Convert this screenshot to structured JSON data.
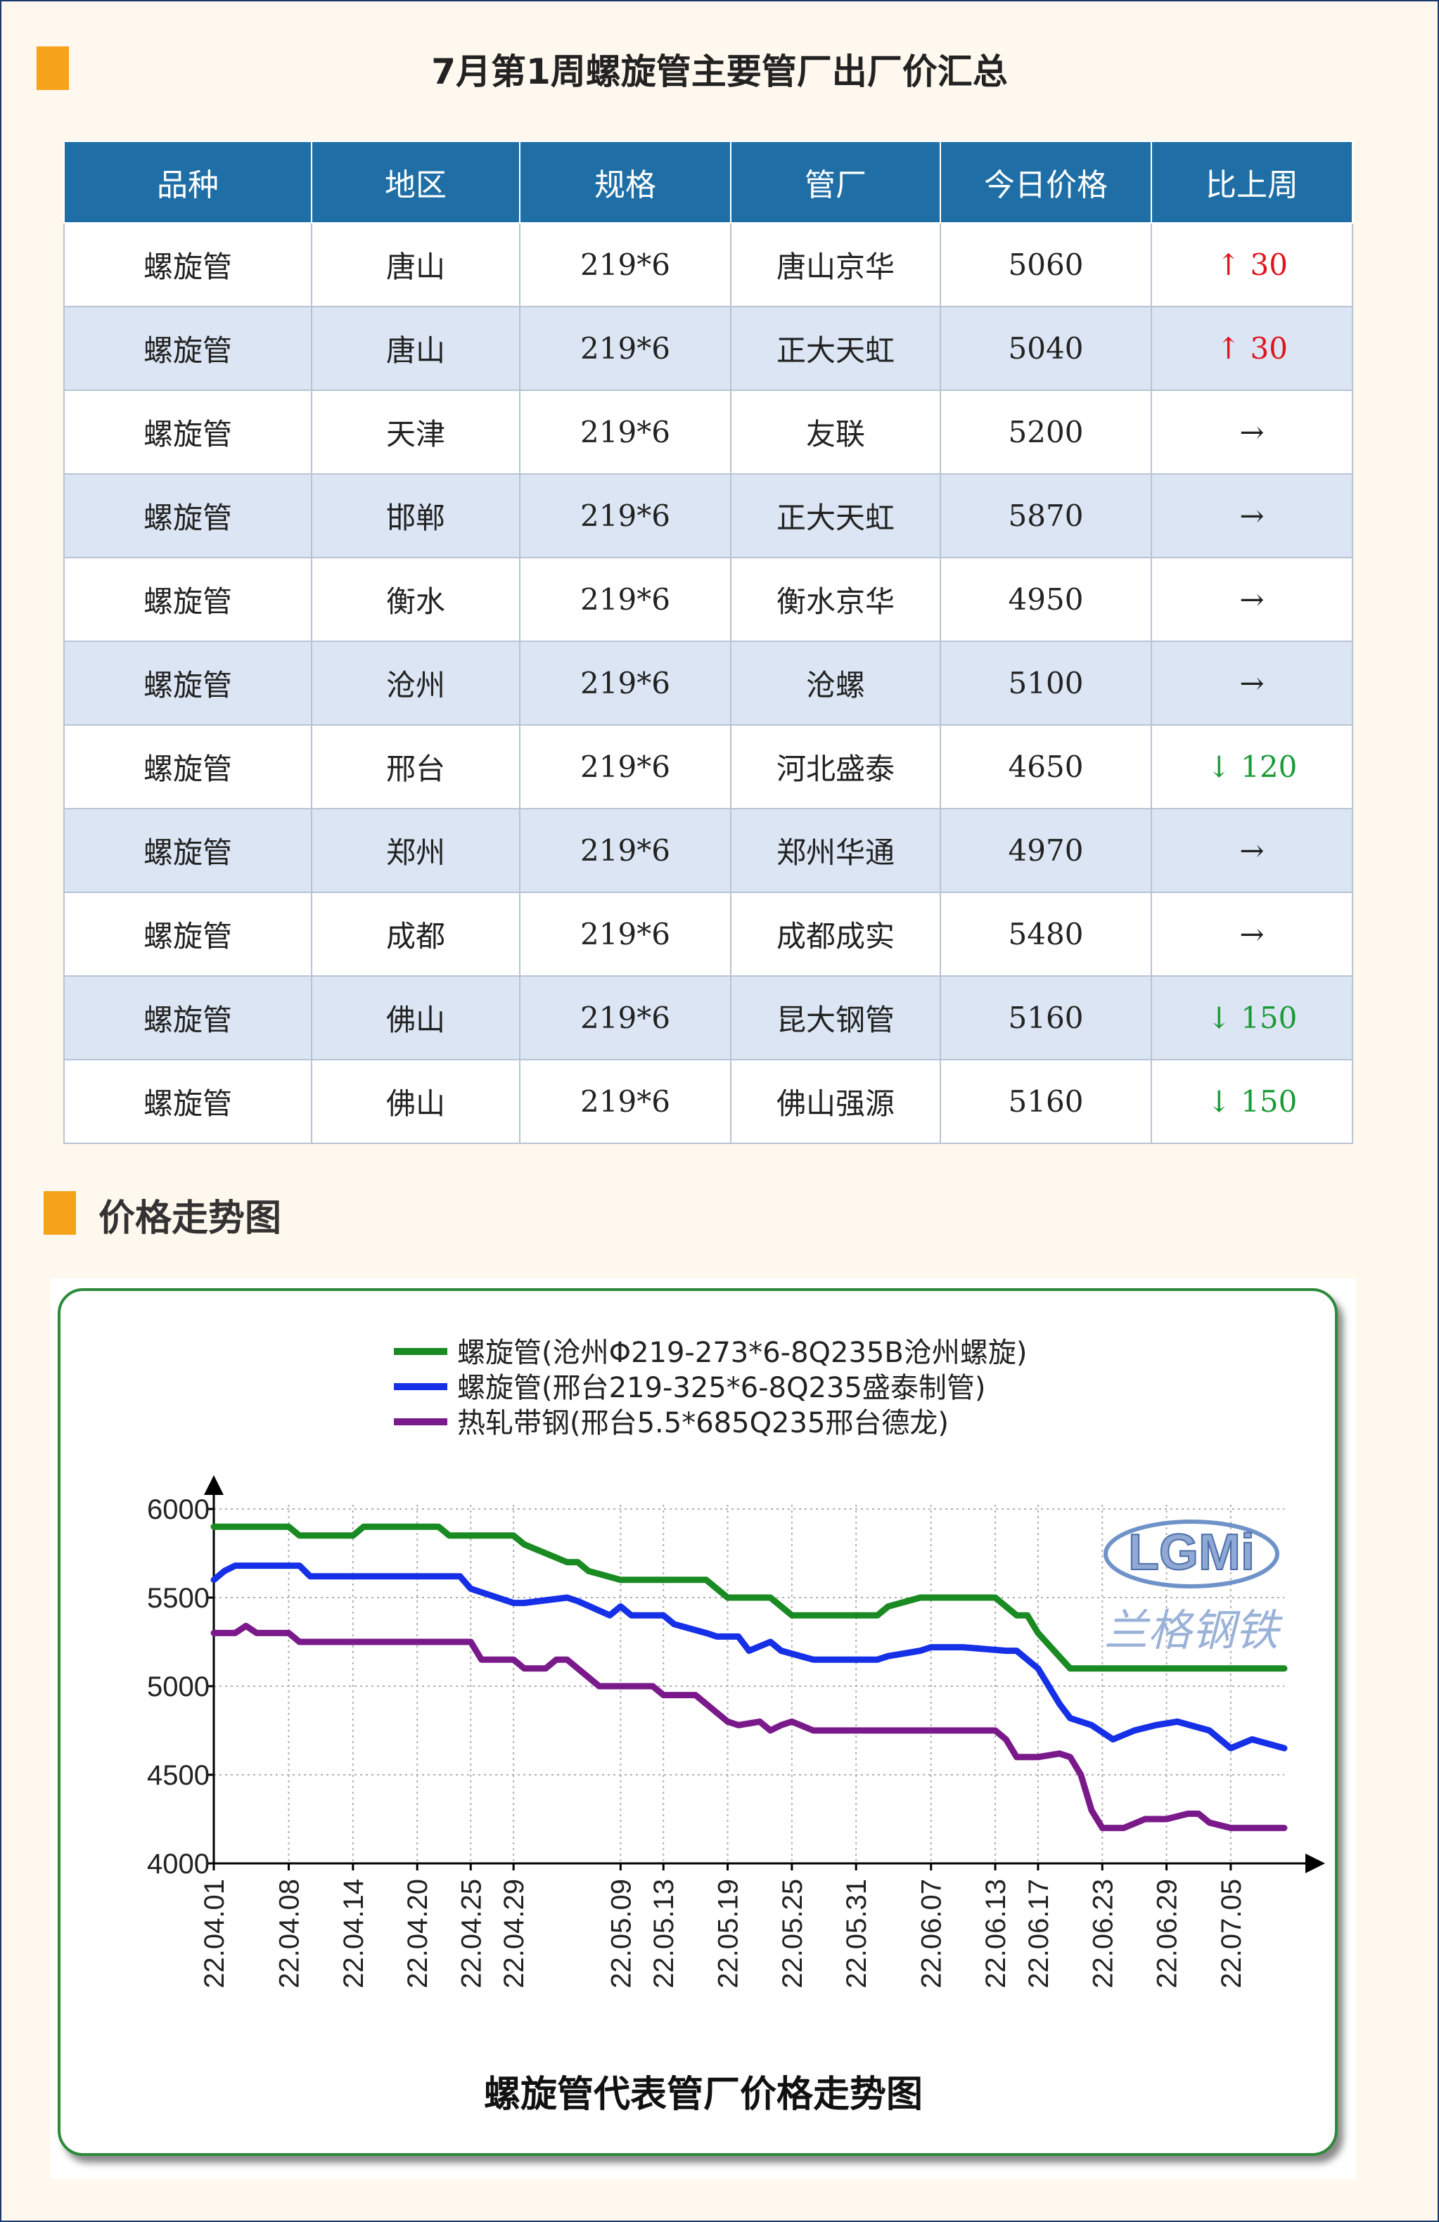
{
  "header": {
    "title": "7月第1周螺旋管主要管厂出厂价汇总"
  },
  "table": {
    "columns": [
      "品种",
      "地区",
      "规格",
      "管厂",
      "今日价格",
      "比上周"
    ],
    "rows": [
      {
        "variety": "螺旋管",
        "region": "唐山",
        "spec": "219*6",
        "mill": "唐山京华",
        "price": "5060",
        "change": "↑ 30",
        "dir": "up"
      },
      {
        "variety": "螺旋管",
        "region": "唐山",
        "spec": "219*6",
        "mill": "正大天虹",
        "price": "5040",
        "change": "↑ 30",
        "dir": "up"
      },
      {
        "variety": "螺旋管",
        "region": "天津",
        "spec": "219*6",
        "mill": "友联",
        "price": "5200",
        "change": "→",
        "dir": "flat"
      },
      {
        "variety": "螺旋管",
        "region": "邯郸",
        "spec": "219*6",
        "mill": "正大天虹",
        "price": "5870",
        "change": "→",
        "dir": "flat"
      },
      {
        "variety": "螺旋管",
        "region": "衡水",
        "spec": "219*6",
        "mill": "衡水京华",
        "price": "4950",
        "change": "→",
        "dir": "flat"
      },
      {
        "variety": "螺旋管",
        "region": "沧州",
        "spec": "219*6",
        "mill": "沧螺",
        "price": "5100",
        "change": "→",
        "dir": "flat"
      },
      {
        "variety": "螺旋管",
        "region": "邢台",
        "spec": "219*6",
        "mill": "河北盛泰",
        "price": "4650",
        "change": "↓ 120",
        "dir": "down"
      },
      {
        "variety": "螺旋管",
        "region": "郑州",
        "spec": "219*6",
        "mill": "郑州华通",
        "price": "4970",
        "change": "→",
        "dir": "flat"
      },
      {
        "variety": "螺旋管",
        "region": "成都",
        "spec": "219*6",
        "mill": "成都成实",
        "price": "5480",
        "change": "→",
        "dir": "flat"
      },
      {
        "variety": "螺旋管",
        "region": "佛山",
        "spec": "219*6",
        "mill": "昆大钢管",
        "price": "5160",
        "change": "↓ 150",
        "dir": "down"
      },
      {
        "variety": "螺旋管",
        "region": "佛山",
        "spec": "219*6",
        "mill": "佛山强源",
        "price": "5160",
        "change": "↓ 150",
        "dir": "down"
      }
    ]
  },
  "section2": {
    "title": "价格走势图"
  },
  "logo": {
    "text": "LGMi",
    "subtitle": "兰格钢铁"
  },
  "colors": {
    "accent": "#f7a21b",
    "header_bg": "#1f6fa6",
    "alt_row": "#dbe5f3",
    "up": "#e0141e",
    "down": "#1a9a36",
    "panel_border": "#2c8a3a"
  },
  "chart_data": {
    "type": "line",
    "title": "螺旋管代表管厂价格走势图",
    "xlabel": "",
    "ylabel": "",
    "ylim": [
      4000,
      6000
    ],
    "yticks": [
      6000,
      5500,
      5000,
      4500,
      4000
    ],
    "xlim": [
      "22.04.01",
      "22.07.10"
    ],
    "xticks": [
      "22.04.01",
      "22.04.08",
      "22.04.14",
      "22.04.20",
      "22.04.25",
      "22.04.29",
      "22.05.09",
      "22.05.13",
      "22.05.19",
      "22.05.25",
      "22.05.31",
      "22.06.07",
      "22.06.13",
      "22.06.17",
      "22.06.23",
      "22.06.29",
      "22.07.05"
    ],
    "grid": true,
    "legend": "top-center",
    "series": [
      {
        "name": "螺旋管(沧州Φ219-273*6-8Q235B沧州螺旋)",
        "color": "#1a8a22",
        "x": [
          "22.04.01",
          "22.04.08",
          "22.04.09",
          "22.04.14",
          "22.04.15",
          "22.04.22",
          "22.04.23",
          "22.04.29",
          "22.04.30",
          "22.05.02",
          "22.05.04",
          "22.05.05",
          "22.05.06",
          "22.05.09",
          "22.05.10",
          "22.05.17",
          "22.05.18",
          "22.05.19",
          "22.05.23",
          "22.05.24",
          "22.05.25",
          "22.06.02",
          "22.06.03",
          "22.06.06",
          "22.06.13",
          "22.06.14",
          "22.06.15",
          "22.06.16",
          "22.06.17",
          "22.06.20",
          "22.06.21",
          "22.07.10"
        ],
        "y": [
          5900,
          5900,
          5850,
          5850,
          5900,
          5900,
          5850,
          5850,
          5800,
          5750,
          5700,
          5700,
          5650,
          5600,
          5600,
          5600,
          5550,
          5500,
          5500,
          5450,
          5400,
          5400,
          5450,
          5500,
          5500,
          5450,
          5400,
          5400,
          5300,
          5100,
          5100,
          5100
        ]
      },
      {
        "name": "螺旋管(邢台219-325*6-8Q235盛泰制管)",
        "color": "#1530e6",
        "x": [
          "22.04.01",
          "22.04.02",
          "22.04.03",
          "22.04.09",
          "22.04.10",
          "22.04.16",
          "22.04.17",
          "22.04.18",
          "22.04.19",
          "22.04.22",
          "22.04.23",
          "22.04.24",
          "22.04.25",
          "22.04.29",
          "22.04.30",
          "22.05.04",
          "22.05.05",
          "22.05.08",
          "22.05.09",
          "22.05.10",
          "22.05.13",
          "22.05.14",
          "22.05.17",
          "22.05.18",
          "22.05.20",
          "22.05.21",
          "22.05.23",
          "22.05.24",
          "22.05.27",
          "22.05.28",
          "22.06.02",
          "22.06.03",
          "22.06.06",
          "22.06.07",
          "22.06.08",
          "22.06.09",
          "22.06.10",
          "22.06.14",
          "22.06.15",
          "22.06.17",
          "22.06.18",
          "22.06.19",
          "22.06.20",
          "22.06.22",
          "22.06.24",
          "22.06.26",
          "22.06.28",
          "22.06.30",
          "22.07.03",
          "22.07.05",
          "22.07.07",
          "22.07.10"
        ],
        "y": [
          5600,
          5650,
          5680,
          5680,
          5620,
          5620,
          5620,
          5620,
          5620,
          5620,
          5620,
          5620,
          5550,
          5470,
          5470,
          5500,
          5480,
          5400,
          5450,
          5400,
          5400,
          5350,
          5300,
          5280,
          5280,
          5200,
          5250,
          5200,
          5150,
          5150,
          5150,
          5170,
          5200,
          5220,
          5220,
          5220,
          5220,
          5200,
          5200,
          5100,
          5000,
          4900,
          4820,
          4780,
          4700,
          4750,
          4780,
          4800,
          4750,
          4650,
          4700,
          4650
        ]
      },
      {
        "name": "热轧带钢(邢台5.5*685Q235邢台德龙)",
        "color": "#7a1a8a",
        "x": [
          "22.04.01",
          "22.04.03",
          "22.04.04",
          "22.04.05",
          "22.04.06",
          "22.04.08",
          "22.04.09",
          "22.04.10",
          "22.04.17",
          "22.04.24",
          "22.04.25",
          "22.04.26",
          "22.04.29",
          "22.04.30",
          "22.05.02",
          "22.05.03",
          "22.05.04",
          "22.05.05",
          "22.05.06",
          "22.05.07",
          "22.05.08",
          "22.05.09",
          "22.05.12",
          "22.05.13",
          "22.05.14",
          "22.05.15",
          "22.05.16",
          "22.05.17",
          "22.05.19",
          "22.05.20",
          "22.05.22",
          "22.05.23",
          "22.05.24",
          "22.05.25",
          "22.05.27",
          "22.05.28",
          "22.06.05",
          "22.06.12",
          "22.06.13",
          "22.06.14",
          "22.06.15",
          "22.06.17",
          "22.06.19",
          "22.06.20",
          "22.06.21",
          "22.06.22",
          "22.06.23",
          "22.06.25",
          "22.06.27",
          "22.06.29",
          "22.07.01",
          "22.07.02",
          "22.07.03",
          "22.07.05",
          "22.07.10"
        ],
        "y": [
          5300,
          5300,
          5340,
          5300,
          5300,
          5300,
          5250,
          5250,
          5250,
          5250,
          5250,
          5150,
          5150,
          5100,
          5100,
          5150,
          5150,
          5100,
          5050,
          5000,
          5000,
          5000,
          5000,
          4950,
          4950,
          4950,
          4950,
          4900,
          4800,
          4780,
          4800,
          4750,
          4780,
          4800,
          4750,
          4750,
          4750,
          4750,
          4750,
          4700,
          4600,
          4600,
          4620,
          4600,
          4500,
          4300,
          4200,
          4200,
          4250,
          4250,
          4280,
          4280,
          4230,
          4200,
          4200
        ]
      }
    ]
  }
}
